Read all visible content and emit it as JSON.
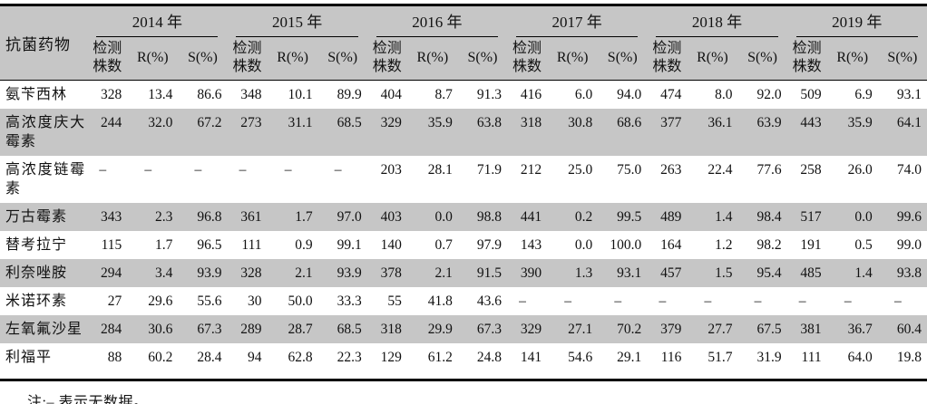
{
  "table": {
    "corner_header": "抗菌药物",
    "years": [
      "2014 年",
      "2015 年",
      "2016 年",
      "2017 年",
      "2018 年",
      "2019 年"
    ],
    "sub_headers": {
      "count": "检测株数",
      "r": "R(%)",
      "s": "S(%)"
    },
    "rows": [
      {
        "drug": "氨苄西林",
        "cells": [
          "328",
          "13.4",
          "86.6",
          "348",
          "10.1",
          "89.9",
          "404",
          "8.7",
          "91.3",
          "416",
          "6.0",
          "94.0",
          "474",
          "8.0",
          "92.0",
          "509",
          "6.9",
          "93.1"
        ]
      },
      {
        "drug": "高浓度庆大霉素",
        "cells": [
          "244",
          "32.0",
          "67.2",
          "273",
          "31.1",
          "68.5",
          "329",
          "35.9",
          "63.8",
          "318",
          "30.8",
          "68.6",
          "377",
          "36.1",
          "63.9",
          "443",
          "35.9",
          "64.1"
        ]
      },
      {
        "drug": "高浓度链霉素",
        "cells": [
          "–",
          "–",
          "–",
          "–",
          "–",
          "–",
          "203",
          "28.1",
          "71.9",
          "212",
          "25.0",
          "75.0",
          "263",
          "22.4",
          "77.6",
          "258",
          "26.0",
          "74.0"
        ]
      },
      {
        "drug": "万古霉素",
        "cells": [
          "343",
          "2.3",
          "96.8",
          "361",
          "1.7",
          "97.0",
          "403",
          "0.0",
          "98.8",
          "441",
          "0.2",
          "99.5",
          "489",
          "1.4",
          "98.4",
          "517",
          "0.0",
          "99.6"
        ]
      },
      {
        "drug": "替考拉宁",
        "cells": [
          "115",
          "1.7",
          "96.5",
          "111",
          "0.9",
          "99.1",
          "140",
          "0.7",
          "97.9",
          "143",
          "0.0",
          "100.0",
          "164",
          "1.2",
          "98.2",
          "191",
          "0.5",
          "99.0"
        ]
      },
      {
        "drug": "利奈唑胺",
        "cells": [
          "294",
          "3.4",
          "93.9",
          "328",
          "2.1",
          "93.9",
          "378",
          "2.1",
          "91.5",
          "390",
          "1.3",
          "93.1",
          "457",
          "1.5",
          "95.4",
          "485",
          "1.4",
          "93.8"
        ]
      },
      {
        "drug": "米诺环素",
        "cells": [
          "27",
          "29.6",
          "55.6",
          "30",
          "50.0",
          "33.3",
          "55",
          "41.8",
          "43.6",
          "–",
          "–",
          "–",
          "–",
          "–",
          "–",
          "–",
          "–",
          "–"
        ]
      },
      {
        "drug": "左氧氟沙星",
        "cells": [
          "284",
          "30.6",
          "67.3",
          "289",
          "28.7",
          "68.5",
          "318",
          "29.9",
          "67.3",
          "329",
          "27.1",
          "70.2",
          "379",
          "27.7",
          "67.5",
          "381",
          "36.7",
          "60.4"
        ]
      },
      {
        "drug": "利福平",
        "cells": [
          "88",
          "60.2",
          "28.4",
          "94",
          "62.8",
          "22.3",
          "129",
          "61.2",
          "24.8",
          "141",
          "54.6",
          "29.1",
          "116",
          "51.7",
          "31.9",
          "111",
          "64.0",
          "19.8"
        ]
      }
    ],
    "note": "注:– 表示无数据。",
    "colors": {
      "stripe_gray": "#c6c6c6",
      "rule_black": "#000000",
      "text": "#111111"
    }
  }
}
